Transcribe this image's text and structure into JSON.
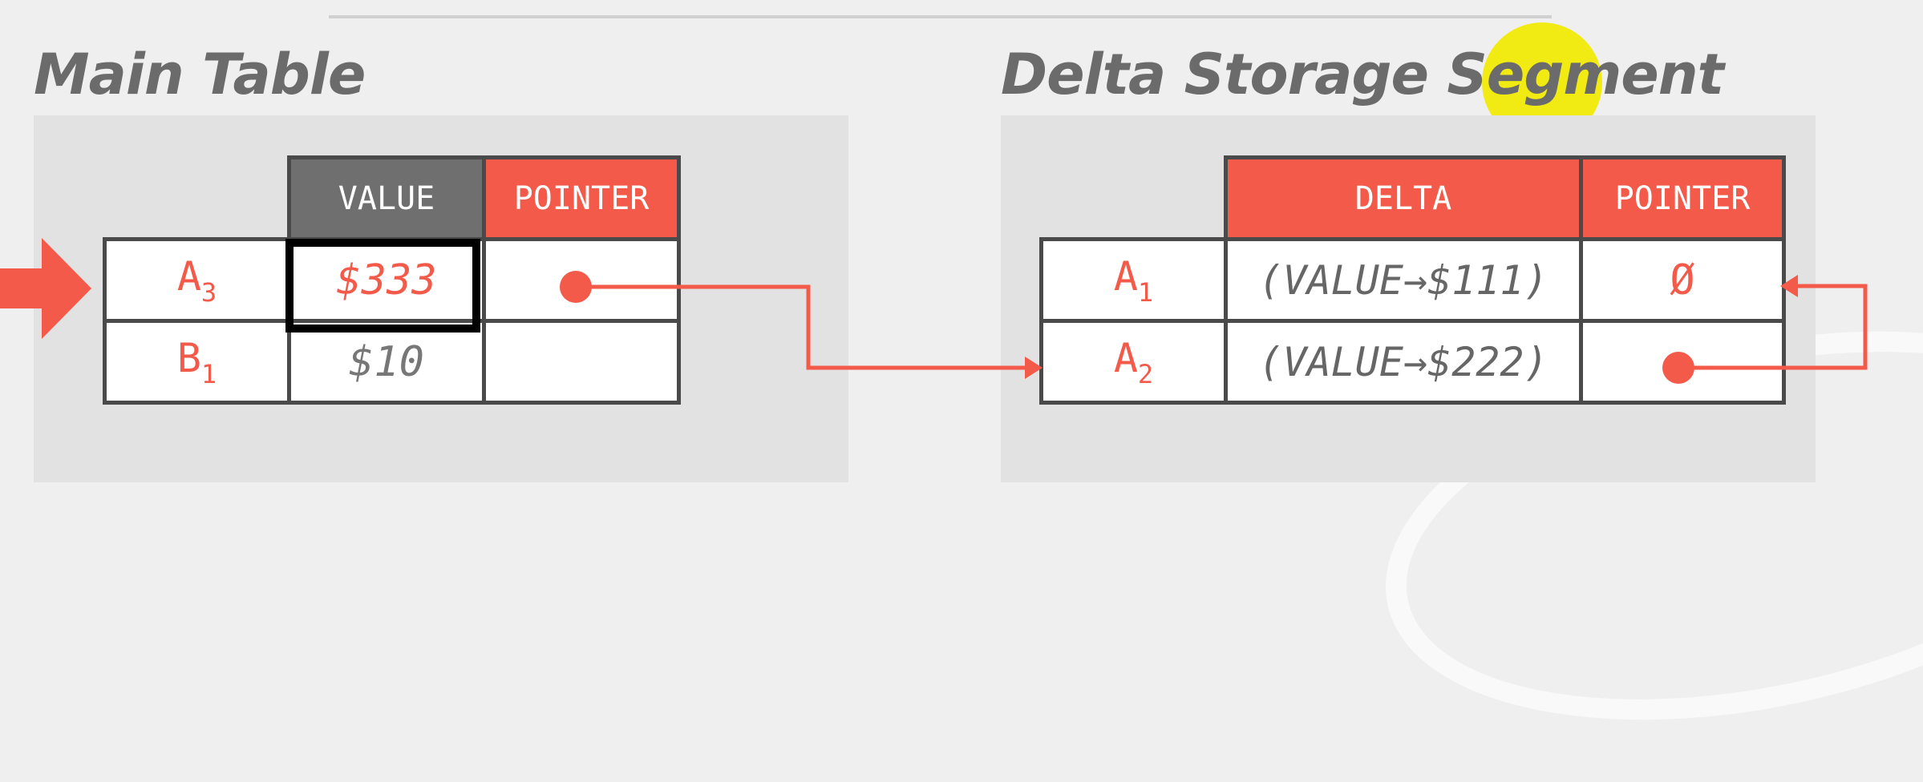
{
  "main_table": {
    "title": "Main Table",
    "headers": {
      "value": "VALUE",
      "pointer": "POINTER"
    },
    "rows": [
      {
        "key": "A",
        "sub": "3",
        "value": "$333"
      },
      {
        "key": "B",
        "sub": "1",
        "value": "$10"
      }
    ]
  },
  "delta_storage": {
    "title": "Delta Storage Segment",
    "headers": {
      "delta": "DELTA",
      "pointer": "POINTER"
    },
    "rows": [
      {
        "key": "A",
        "sub": "1",
        "delta": "(VALUE→$111)",
        "pointer": "Ø"
      },
      {
        "key": "A",
        "sub": "2",
        "delta": "(VALUE→$222)"
      }
    ]
  },
  "colors": {
    "accent": "#f35a4a",
    "header_gray": "#6f6f6f",
    "border": "#4a4a4a",
    "highlight": "#f2ea00"
  }
}
